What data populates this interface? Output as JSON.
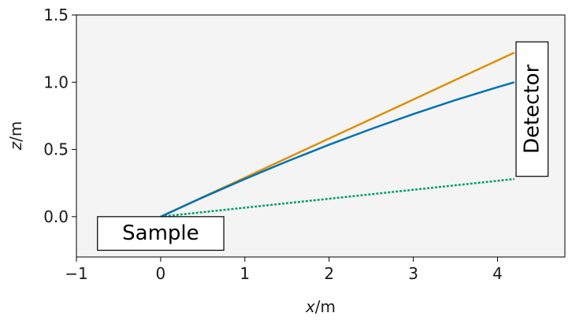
{
  "chart_data": {
    "type": "line",
    "title": "",
    "xlabel": {
      "var": "x",
      "unit": "/m"
    },
    "ylabel": {
      "var": "z",
      "unit": "/m"
    },
    "xlim": [
      -1,
      4.8
    ],
    "ylim": [
      -0.3,
      1.5
    ],
    "xticks": [
      -1,
      0,
      1,
      2,
      3,
      4
    ],
    "xtick_labels": [
      "−1",
      "0",
      "1",
      "2",
      "3",
      "4"
    ],
    "yticks": [
      0.0,
      0.5,
      1.0,
      1.5
    ],
    "ytick_labels": [
      "0.0",
      "0.5",
      "1.0",
      "1.5"
    ],
    "grid": false,
    "background": "#f4f4f4",
    "series": [
      {
        "color": "#de8f05",
        "style": "solid",
        "x": [
          0,
          0.5,
          1,
          1.5,
          2,
          2.5,
          3,
          3.5,
          4,
          4.2
        ],
        "y": [
          0,
          0.145,
          0.29,
          0.436,
          0.581,
          0.726,
          0.871,
          1.017,
          1.162,
          1.22
        ]
      },
      {
        "color": "#0173b2",
        "style": "solid",
        "x": [
          0,
          0.5,
          1,
          1.5,
          2,
          2.5,
          3,
          3.5,
          4,
          4.2
        ],
        "y": [
          0,
          0.143,
          0.28,
          0.411,
          0.535,
          0.652,
          0.763,
          0.867,
          0.963,
          1.0
        ]
      },
      {
        "color": "#029e73",
        "style": "dotted",
        "x": [
          0,
          4.2
        ],
        "y": [
          0,
          0.28
        ]
      }
    ],
    "annotations": [
      {
        "name": "sample",
        "text": "Sample",
        "x0": -0.75,
        "x1": 0.75,
        "y0": -0.25,
        "y1": 0.0,
        "rotate": 0
      },
      {
        "name": "detector",
        "text": "Detector",
        "x0": 4.22,
        "x1": 4.6,
        "y0": 0.3,
        "y1": 1.3,
        "rotate": -90
      }
    ]
  }
}
